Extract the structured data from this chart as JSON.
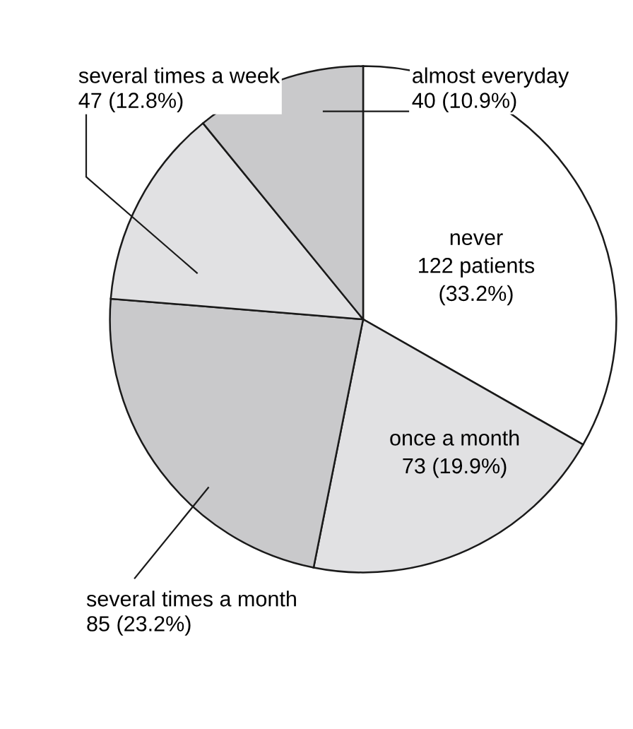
{
  "chart_data": {
    "type": "pie",
    "categories": [
      "never",
      "once a month",
      "several times a month",
      "several times a week",
      "almost everyday"
    ],
    "values": [
      122,
      73,
      85,
      47,
      40
    ],
    "value_labels": [
      "122 patients\n(33.2%)",
      "73 (19.9%)",
      "85 (23.2%)",
      "47 (12.8%)",
      "40 (10.9%)"
    ],
    "colors": [
      "#ffffff",
      "#e1e1e3",
      "#c9c9cb",
      "#e1e1e3",
      "#c9c9cb"
    ],
    "legend": false
  }
}
